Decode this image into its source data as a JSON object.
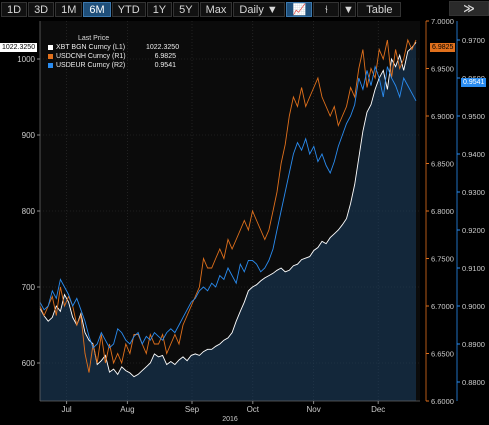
{
  "toolbar": {
    "ranges": [
      "1D",
      "3D",
      "1M",
      "6M",
      "YTD",
      "1Y",
      "5Y",
      "Max"
    ],
    "active_range": "6M",
    "frequency": "Daily ▼",
    "table_label": "Table",
    "next_label": "≫"
  },
  "legend": {
    "header": "Last Price",
    "entries": [
      {
        "name": "XBT BGN Curncy",
        "axis": "(L1)",
        "value": "1022.3250",
        "color": "#ffffff"
      },
      {
        "name": "USDCNH Curncy",
        "axis": "(R1)",
        "value": "6.9825",
        "color": "#e0701c"
      },
      {
        "name": "USDEUR Curncy",
        "axis": "(R2)",
        "value": "0.9541",
        "color": "#2a8cf0"
      }
    ]
  },
  "flags": {
    "left": "1022.3250",
    "r1": "6.9825",
    "r2": "0.9541"
  },
  "chart_data": {
    "type": "line",
    "x_ticks": [
      "Jul",
      "Aug",
      "Sep",
      "Oct",
      "Nov",
      "Dec"
    ],
    "year_label": "2016",
    "y_left": {
      "ticks": [
        600,
        700,
        800,
        900,
        1000
      ],
      "range": [
        550,
        1050
      ]
    },
    "y_r1": {
      "ticks": [
        6.6,
        6.65,
        6.7,
        6.75,
        6.8,
        6.85,
        6.9,
        6.95,
        7.0
      ],
      "range": [
        6.6,
        7.0
      ]
    },
    "y_r2": {
      "ticks": [
        0.88,
        0.89,
        0.9,
        0.91,
        0.92,
        0.93,
        0.94,
        0.95,
        0.96,
        0.97
      ],
      "range": [
        0.875,
        0.975
      ]
    },
    "series": [
      {
        "name": "XBT BGN Curncy",
        "axis": "L1",
        "color": "#ffffff",
        "x": [
          0,
          2,
          4,
          6,
          8,
          10,
          12,
          14,
          16,
          18,
          20,
          22,
          24,
          26,
          28,
          30,
          32,
          34,
          36,
          38,
          40,
          42,
          44,
          46,
          48,
          50,
          52,
          54,
          56,
          58,
          60,
          62,
          64,
          66,
          68,
          70,
          72,
          74,
          76,
          78,
          80,
          82,
          84,
          86,
          88,
          90,
          92,
          94,
          96,
          98,
          100,
          102,
          104,
          106,
          108,
          110,
          112,
          114,
          116,
          118,
          120,
          122,
          124,
          126,
          128,
          130,
          132,
          134,
          136,
          138,
          140,
          142,
          144,
          146,
          148,
          150,
          152,
          154,
          156,
          158,
          160,
          162,
          164,
          166,
          168,
          170,
          172,
          174,
          176,
          178,
          180,
          182,
          184
        ],
        "y": [
          672,
          662,
          655,
          660,
          675,
          668,
          690,
          680,
          660,
          650,
          665,
          640,
          630,
          625,
          598,
          603,
          610,
          588,
          592,
          585,
          595,
          590,
          587,
          582,
          585,
          590,
          595,
          600,
          612,
          608,
          610,
          598,
          602,
          598,
          604,
          608,
          603,
          610,
          612,
          610,
          615,
          618,
          618,
          622,
          625,
          630,
          633,
          640,
          655,
          668,
          680,
          695,
          700,
          703,
          708,
          712,
          715,
          718,
          722,
          725,
          720,
          722,
          728,
          730,
          736,
          738,
          740,
          748,
          752,
          760,
          757,
          765,
          770,
          775,
          782,
          790,
          810,
          835,
          870,
          905,
          930,
          940,
          960,
          975,
          985,
          960,
          1000,
          990,
          1005,
          985,
          1010,
          1015,
          1022
        ]
      },
      {
        "name": "USDCNH Curncy",
        "axis": "R1",
        "color": "#e0701c",
        "x": [
          0,
          2,
          4,
          6,
          8,
          10,
          12,
          14,
          16,
          18,
          20,
          22,
          24,
          26,
          28,
          30,
          32,
          34,
          36,
          38,
          40,
          42,
          44,
          46,
          48,
          50,
          52,
          54,
          56,
          58,
          60,
          62,
          64,
          66,
          68,
          70,
          72,
          74,
          76,
          78,
          80,
          82,
          84,
          86,
          88,
          90,
          92,
          94,
          96,
          98,
          100,
          102,
          104,
          106,
          108,
          110,
          112,
          114,
          116,
          118,
          120,
          122,
          124,
          126,
          128,
          130,
          132,
          134,
          136,
          138,
          140,
          142,
          144,
          146,
          148,
          150,
          152,
          154,
          156,
          158,
          160,
          162,
          164,
          166,
          168,
          170,
          172,
          174,
          176,
          178,
          180,
          182,
          184
        ],
        "y": [
          6.7,
          6.69,
          6.7,
          6.71,
          6.69,
          6.72,
          6.7,
          6.71,
          6.7,
          6.68,
          6.69,
          6.65,
          6.63,
          6.66,
          6.64,
          6.67,
          6.64,
          6.66,
          6.64,
          6.65,
          6.64,
          6.66,
          6.65,
          6.67,
          6.67,
          6.66,
          6.65,
          6.67,
          6.66,
          6.66,
          6.67,
          6.65,
          6.66,
          6.67,
          6.66,
          6.68,
          6.69,
          6.7,
          6.71,
          6.72,
          6.75,
          6.74,
          6.74,
          6.75,
          6.76,
          6.75,
          6.77,
          6.76,
          6.77,
          6.78,
          6.79,
          6.78,
          6.8,
          6.79,
          6.78,
          6.77,
          6.78,
          6.8,
          6.82,
          6.85,
          6.87,
          6.9,
          6.92,
          6.91,
          6.93,
          6.91,
          6.92,
          6.93,
          6.94,
          6.92,
          6.91,
          6.9,
          6.91,
          6.89,
          6.9,
          6.91,
          6.93,
          6.92,
          6.95,
          6.97,
          6.93,
          6.95,
          6.94,
          6.97,
          6.96,
          6.98,
          6.94,
          6.97,
          6.95,
          6.96,
          6.98,
          6.97,
          6.98
        ]
      },
      {
        "name": "USDEUR Curncy",
        "axis": "R2",
        "color": "#2a8cf0",
        "x": [
          0,
          2,
          4,
          6,
          8,
          10,
          12,
          14,
          16,
          18,
          20,
          22,
          24,
          26,
          28,
          30,
          32,
          34,
          36,
          38,
          40,
          42,
          44,
          46,
          48,
          50,
          52,
          54,
          56,
          58,
          60,
          62,
          64,
          66,
          68,
          70,
          72,
          74,
          76,
          78,
          80,
          82,
          84,
          86,
          88,
          90,
          92,
          94,
          96,
          98,
          100,
          102,
          104,
          106,
          108,
          110,
          112,
          114,
          116,
          118,
          120,
          122,
          124,
          126,
          128,
          130,
          132,
          134,
          136,
          138,
          140,
          142,
          144,
          146,
          148,
          150,
          152,
          154,
          156,
          158,
          160,
          162,
          164,
          166,
          168,
          170,
          172,
          174,
          176,
          178,
          180,
          182,
          184
        ],
        "y": [
          0.901,
          0.899,
          0.9,
          0.904,
          0.902,
          0.907,
          0.905,
          0.903,
          0.9,
          0.902,
          0.899,
          0.896,
          0.892,
          0.889,
          0.89,
          0.893,
          0.891,
          0.889,
          0.89,
          0.894,
          0.893,
          0.891,
          0.89,
          0.892,
          0.893,
          0.89,
          0.892,
          0.891,
          0.893,
          0.892,
          0.891,
          0.893,
          0.894,
          0.893,
          0.895,
          0.897,
          0.899,
          0.901,
          0.902,
          0.904,
          0.905,
          0.904,
          0.906,
          0.905,
          0.908,
          0.907,
          0.91,
          0.908,
          0.906,
          0.911,
          0.909,
          0.912,
          0.912,
          0.911,
          0.909,
          0.91,
          0.912,
          0.915,
          0.92,
          0.925,
          0.93,
          0.935,
          0.94,
          0.943,
          0.941,
          0.944,
          0.94,
          0.942,
          0.938,
          0.94,
          0.937,
          0.935,
          0.938,
          0.942,
          0.945,
          0.948,
          0.95,
          0.953,
          0.96,
          0.957,
          0.962,
          0.958,
          0.963,
          0.96,
          0.955,
          0.963,
          0.96,
          0.958,
          0.955,
          0.96,
          0.958,
          0.956,
          0.954
        ]
      }
    ]
  }
}
